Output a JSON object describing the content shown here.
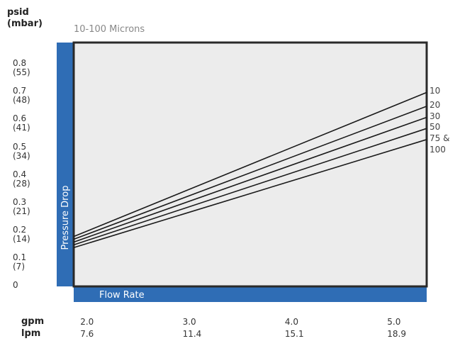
{
  "y_units": {
    "primary": "psid",
    "secondary": "(mbar)"
  },
  "x_units": {
    "primary": "gpm",
    "secondary": "lpm"
  },
  "colors": {
    "axis_bar": "#2f6db5",
    "plot_bg": "#ececec",
    "line": "#1a1a1a"
  },
  "chart_data": {
    "type": "line",
    "title": "10-100 Microns",
    "xlabel": "Flow Rate",
    "ylabel": "Pressure Drop",
    "xlim": [
      1.95,
      5.4
    ],
    "ylim": [
      0,
      0.88
    ],
    "grid": false,
    "y_ticks": [
      {
        "value": 0.8,
        "label": "0.8",
        "sub": "(55)"
      },
      {
        "value": 0.7,
        "label": "0.7",
        "sub": "(48)"
      },
      {
        "value": 0.6,
        "label": "0.6",
        "sub": "(41)"
      },
      {
        "value": 0.5,
        "label": "0.5",
        "sub": "(34)"
      },
      {
        "value": 0.4,
        "label": "0.4",
        "sub": "(28)"
      },
      {
        "value": 0.3,
        "label": "0.3",
        "sub": "(21)"
      },
      {
        "value": 0.2,
        "label": "0.2",
        "sub": "(14)"
      },
      {
        "value": 0.1,
        "label": "0.1",
        "sub": "(7)"
      },
      {
        "value": 0,
        "label": "0",
        "sub": ""
      }
    ],
    "x_ticks": [
      {
        "value": 2.0,
        "label": "2.0",
        "sub": "7.6"
      },
      {
        "value": 3.0,
        "label": "3.0",
        "sub": "11.4"
      },
      {
        "value": 4.0,
        "label": "4.0",
        "sub": "15.1"
      },
      {
        "value": 5.0,
        "label": "5.0",
        "sub": "18.9"
      }
    ],
    "series": [
      {
        "name": "10",
        "x": [
          1.95,
          5.4
        ],
        "y": [
          0.18,
          0.7
        ]
      },
      {
        "name": "20",
        "x": [
          1.95,
          5.4
        ],
        "y": [
          0.17,
          0.65
        ]
      },
      {
        "name": "30",
        "x": [
          1.95,
          5.4
        ],
        "y": [
          0.16,
          0.61
        ]
      },
      {
        "name": "50",
        "x": [
          1.95,
          5.4
        ],
        "y": [
          0.15,
          0.57
        ]
      },
      {
        "name": "75 &\n100",
        "x": [
          1.95,
          5.4
        ],
        "y": [
          0.14,
          0.53
        ]
      }
    ]
  }
}
